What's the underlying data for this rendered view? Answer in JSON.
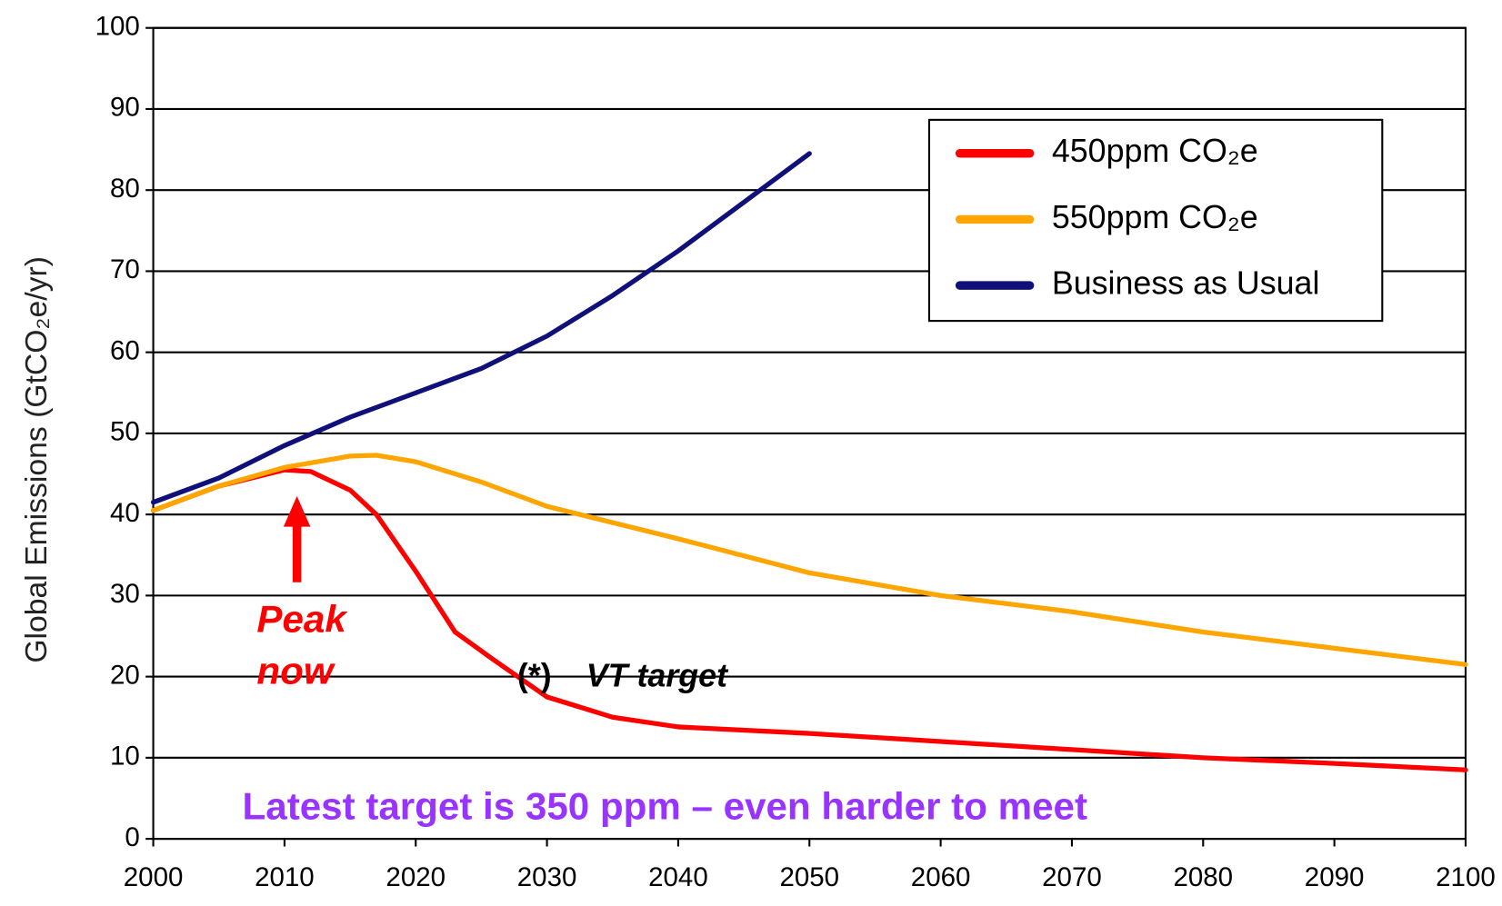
{
  "chart_data": {
    "type": "line",
    "y_label": "Global Emissions (GtCO₂e/yr)",
    "xlim": [
      2000,
      2100
    ],
    "xticks": [
      2000,
      2010,
      2020,
      2030,
      2040,
      2050,
      2060,
      2070,
      2080,
      2090,
      2100
    ],
    "ylim": [
      0,
      100
    ],
    "yticks": [
      0,
      10,
      20,
      30,
      40,
      50,
      60,
      70,
      80,
      90,
      100
    ],
    "grid": true,
    "legend": "upper right",
    "series": [
      {
        "name": "450ppm CO₂e",
        "color": "#ff0000",
        "x": [
          2000,
          2005,
          2010,
          2012,
          2015,
          2017,
          2020,
          2023,
          2026,
          2030,
          2035,
          2040,
          2050,
          2060,
          2070,
          2080,
          2090,
          2100
        ],
        "values": [
          40.5,
          43.5,
          45.5,
          45.3,
          43,
          40,
          33,
          25.5,
          22,
          17.5,
          15,
          13.8,
          13,
          12,
          11,
          10,
          9.3,
          8.5
        ]
      },
      {
        "name": "550ppm CO₂e",
        "color": "#ffa500",
        "x": [
          2000,
          2005,
          2010,
          2015,
          2017,
          2020,
          2025,
          2030,
          2040,
          2050,
          2060,
          2070,
          2080,
          2090,
          2100
        ],
        "values": [
          40.5,
          43.5,
          45.8,
          47.2,
          47.3,
          46.5,
          44,
          41,
          37,
          32.8,
          30,
          28,
          25.5,
          23.5,
          21.5
        ]
      },
      {
        "name": "Business as Usual",
        "color": "#10107a",
        "x": [
          2000,
          2005,
          2010,
          2015,
          2020,
          2025,
          2030,
          2035,
          2040,
          2045,
          2050
        ],
        "values": [
          41.5,
          44.5,
          48.5,
          52,
          55,
          58,
          62,
          67,
          72.5,
          78.5,
          84.5
        ]
      }
    ],
    "annotations": [
      "Peak now",
      "(*)",
      "VT target",
      "Latest target is 350 ppm – even harder to meet"
    ]
  }
}
